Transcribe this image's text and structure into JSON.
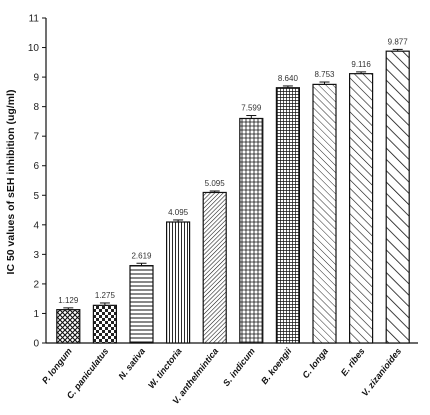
{
  "chart_data": {
    "type": "bar",
    "title": "",
    "xlabel": "",
    "ylabel": "IC 50 values of sEH inhibition (ug/ml)",
    "ylim": [
      0,
      11
    ],
    "yticks": [
      0,
      1,
      2,
      3,
      4,
      5,
      6,
      7,
      8,
      9,
      10,
      11
    ],
    "grid": false,
    "categories": [
      "P. longum",
      "C. paniculatus",
      "N. sativa",
      "W. tinctoria",
      "V. anthelmintica",
      "S. indicum",
      "B. koengii",
      "C. longa",
      "E. ribes",
      "V. zizanioides"
    ],
    "values": [
      1.129,
      1.275,
      2.619,
      4.095,
      5.095,
      7.599,
      8.64,
      8.753,
      9.116,
      9.877
    ],
    "value_labels": [
      "1.129",
      "1.275",
      "2.619",
      "4.095",
      "5.095",
      "7.599",
      "8.640",
      "8.753",
      "9.116",
      "9.877"
    ],
    "error_bars": [
      0.06,
      0.08,
      0.08,
      0.07,
      0.05,
      0.1,
      0.06,
      0.08,
      0.06,
      0.06
    ],
    "bar_patterns": [
      "diamond-hatch",
      "checkerboard",
      "horizontal-lines",
      "vertical-lines",
      "diagonal-dense",
      "crosshatch-grid",
      "crosshatch-fine",
      "diagonal-thin",
      "diagonal-wide",
      "diagonal-bold"
    ]
  }
}
